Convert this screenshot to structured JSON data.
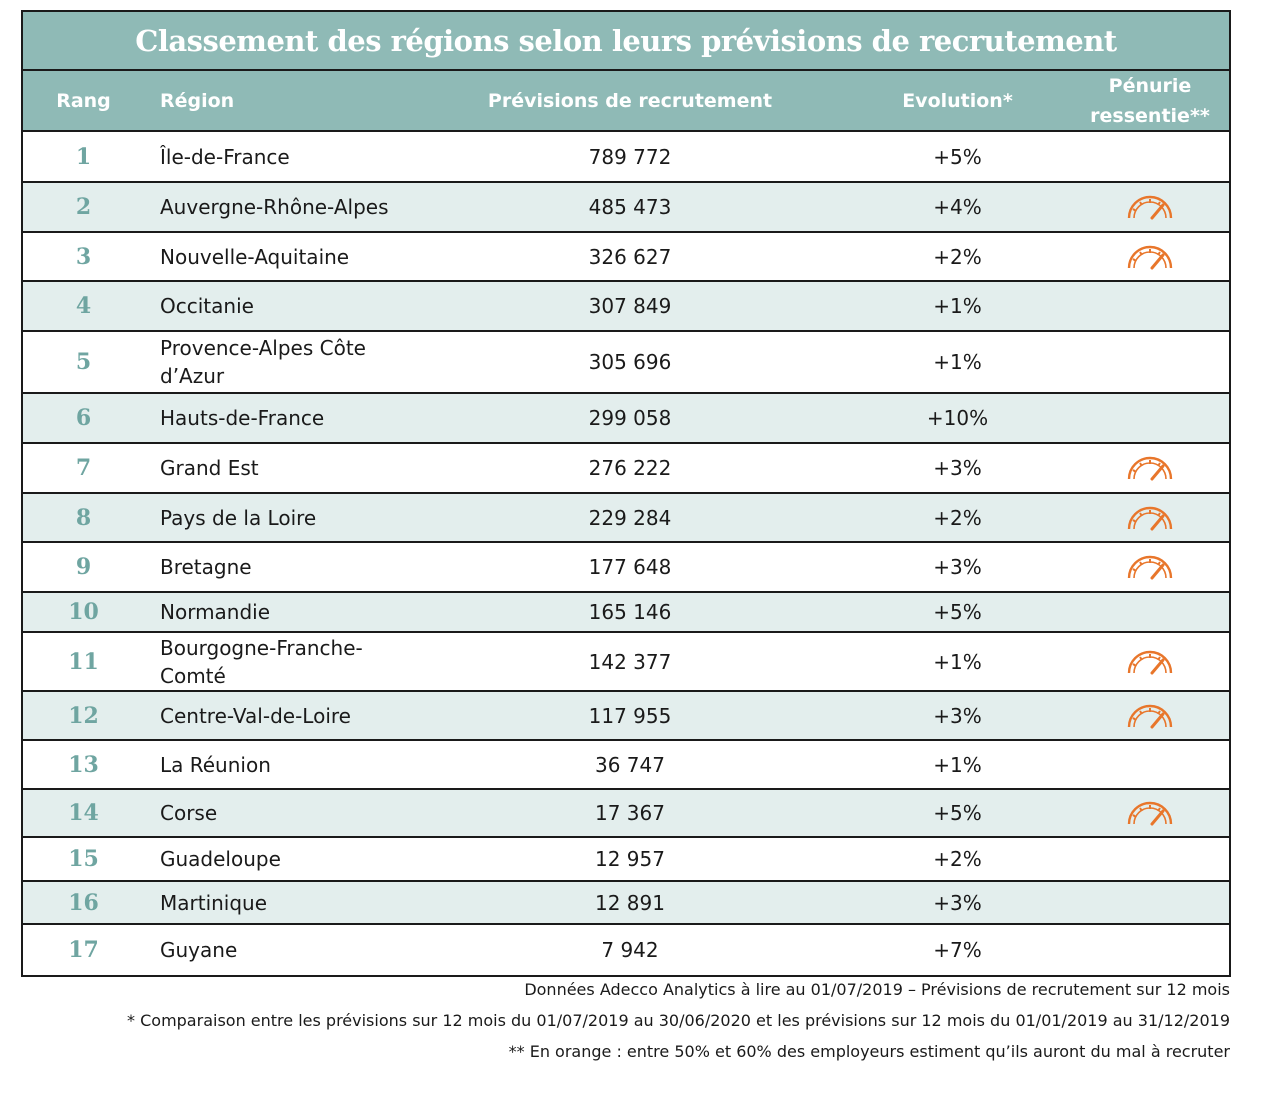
{
  "title": "Classement des régions selon leurs prévisions de recrutement",
  "headers": {
    "rang": "Rang",
    "region": "Région",
    "previsions": "Prévisions de recrutement",
    "evolution": "Evolution*",
    "penurie_line1": "Pénurie",
    "penurie_line2": "ressentie**"
  },
  "rows": [
    {
      "rank": "1",
      "region": "Île-de-France",
      "previsions": "789 772",
      "evolution": "+5%",
      "penurie": false
    },
    {
      "rank": "2",
      "region": "Auvergne-Rhône-Alpes",
      "previsions": "485 473",
      "evolution": "+4%",
      "penurie": true
    },
    {
      "rank": "3",
      "region": "Nouvelle-Aquitaine",
      "previsions": "326 627",
      "evolution": "+2%",
      "penurie": true
    },
    {
      "rank": "4",
      "region": "Occitanie",
      "previsions": "307 849",
      "evolution": "+1%",
      "penurie": false
    },
    {
      "rank": "5",
      "region": "Provence-Alpes Côte d’Azur",
      "previsions": "305 696",
      "evolution": "+1%",
      "penurie": false
    },
    {
      "rank": "6",
      "region": "Hauts-de-France",
      "previsions": "299 058",
      "evolution": "+10%",
      "penurie": false
    },
    {
      "rank": "7",
      "region": "Grand Est",
      "previsions": "276 222",
      "evolution": "+3%",
      "penurie": true
    },
    {
      "rank": "8",
      "region": "Pays de la Loire",
      "previsions": "229 284",
      "evolution": "+2%",
      "penurie": true
    },
    {
      "rank": "9",
      "region": "Bretagne",
      "previsions": "177 648",
      "evolution": "+3%",
      "penurie": true
    },
    {
      "rank": "10",
      "region": "Normandie",
      "previsions": "165 146",
      "evolution": "+5%",
      "penurie": false
    },
    {
      "rank": "11",
      "region": "Bourgogne-Franche-Comté",
      "previsions": "142 377",
      "evolution": "+1%",
      "penurie": true
    },
    {
      "rank": "12",
      "region": "Centre-Val-de-Loire",
      "previsions": "117 955",
      "evolution": "+3%",
      "penurie": true
    },
    {
      "rank": "13",
      "region": "La Réunion",
      "previsions": "36 747",
      "evolution": "+1%",
      "penurie": false
    },
    {
      "rank": "14",
      "region": "Corse",
      "previsions": "17 367",
      "evolution": "+5%",
      "penurie": true
    },
    {
      "rank": "15",
      "region": "Guadeloupe",
      "previsions": "12 957",
      "evolution": "+2%",
      "penurie": false
    },
    {
      "rank": "16",
      "region": "Martinique",
      "previsions": "12 891",
      "evolution": "+3%",
      "penurie": false
    },
    {
      "rank": "17",
      "region": "Guyane",
      "previsions": "7 942",
      "evolution": "+7%",
      "penurie": false
    }
  ],
  "icons": {
    "penurie": "gauge-icon"
  },
  "colors": {
    "header_bg": "#8fbab6",
    "alt_row_bg": "#e3eeed",
    "rank_color": "#6fa5a1",
    "gauge_color": "#e8762b"
  },
  "notes": [
    "Données Adecco Analytics à lire au 01/07/2019 – Prévisions de recrutement sur 12 mois",
    "* Comparaison entre les prévisions sur 12 mois du 01/07/2019 au 30/06/2020 et les prévisions sur 12 mois du 01/01/2019 au 31/12/2019",
    "** En orange : entre 50% et 60% des employeurs estiment qu’ils auront du mal à recruter"
  ]
}
